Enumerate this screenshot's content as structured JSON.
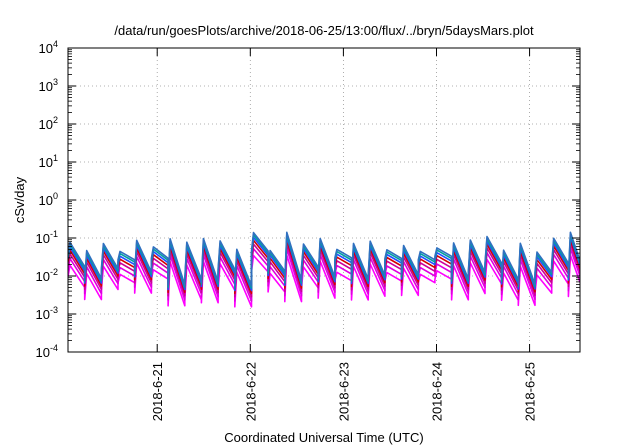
{
  "chart_data": {
    "type": "line",
    "title": "/data/run/goesPlots/archive/2018-06-25/13:00/flux/../bryn/5daysMars.plot",
    "xlabel": "Coordinated Universal Time (UTC)",
    "ylabel": "cSv/day",
    "yscale": "log",
    "ylim": [
      0.0001,
      10000
    ],
    "xlim": [
      "2018-06-20T01:00",
      "2018-06-25T13:00"
    ],
    "yticks": [
      {
        "value": 0.0001,
        "base": "10",
        "exp": "-4"
      },
      {
        "value": 0.001,
        "base": "10",
        "exp": "-3"
      },
      {
        "value": 0.01,
        "base": "10",
        "exp": "-2"
      },
      {
        "value": 0.1,
        "base": "10",
        "exp": "-1"
      },
      {
        "value": 1,
        "base": "10",
        "exp": "0"
      },
      {
        "value": 10,
        "base": "10",
        "exp": "1"
      },
      {
        "value": 100,
        "base": "10",
        "exp": "2"
      },
      {
        "value": 1000,
        "base": "10",
        "exp": "3"
      },
      {
        "value": 10000,
        "base": "10",
        "exp": "4"
      }
    ],
    "xticks": [
      {
        "value": "2018-06-21T00:00",
        "label": "2018-6-21"
      },
      {
        "value": "2018-06-22T00:00",
        "label": "2018-6-22"
      },
      {
        "value": "2018-06-23T00:00",
        "label": "2018-6-23"
      },
      {
        "value": "2018-06-24T00:00",
        "label": "2018-6-24"
      },
      {
        "value": "2018-06-25T00:00",
        "label": "2018-6-25"
      }
    ],
    "grid": true,
    "pattern": {
      "period_hours": 4.3,
      "peak_range": [
        0.04,
        0.15
      ],
      "trough_range": [
        0.0025,
        0.025
      ]
    },
    "series_colors": [
      "#ff00ff",
      "#e000e0",
      "#cc0099",
      "#d40000",
      "#2050ff",
      "#00a0a0",
      "#3070c0"
    ]
  }
}
